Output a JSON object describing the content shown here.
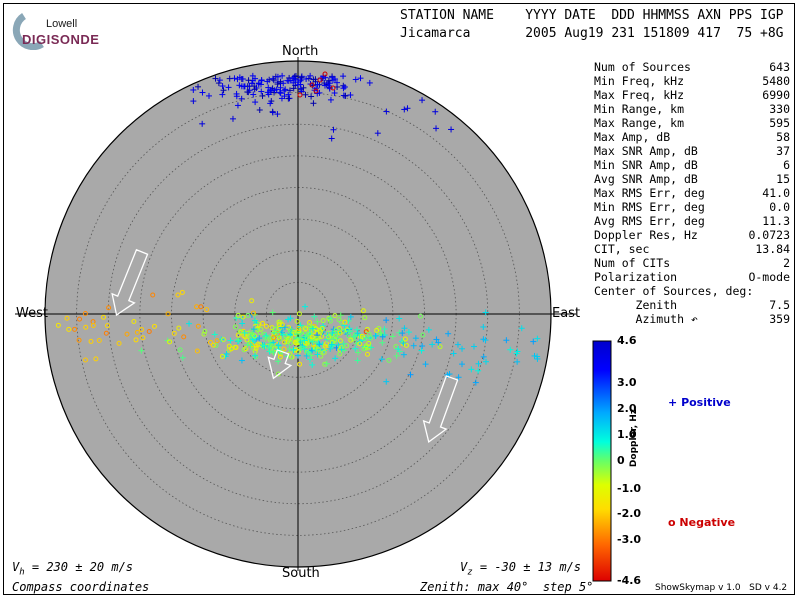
{
  "logo": {
    "line1": "Lowell",
    "line2": "DIGISONDE"
  },
  "header": {
    "labels": "STATION NAME    YYYY DATE  DDD HHMMSS AXN PPS IGP",
    "values": "Jicamarca       2005 Aug19 231 151809 417  75 +8G"
  },
  "compass": {
    "north": "North",
    "south": "South",
    "east": "East",
    "west": "West"
  },
  "stats": [
    {
      "label": "Num of Sources",
      "value": "643"
    },
    {
      "label": "Min Freq, kHz",
      "value": "5480"
    },
    {
      "label": "Max Freq, kHz",
      "value": "6990"
    },
    {
      "label": "Min Range, km",
      "value": "330"
    },
    {
      "label": "Max Range, km",
      "value": "595"
    },
    {
      "label": "Max Amp, dB",
      "value": "58"
    },
    {
      "label": "Max SNR Amp, dB",
      "value": "37"
    },
    {
      "label": "Min SNR Amp, dB",
      "value": "6"
    },
    {
      "label": "Avg SNR Amp, dB",
      "value": "15"
    },
    {
      "label": "Max RMS Err, deg",
      "value": "41.0"
    },
    {
      "label": "Min RMS Err, deg",
      "value": "0.0"
    },
    {
      "label": "Avg RMS Err, deg",
      "value": "11.3"
    },
    {
      "label": "Doppler Res, Hz",
      "value": "0.0723"
    },
    {
      "label": "CIT, sec",
      "value": "13.84"
    },
    {
      "label": "Num of CITs",
      "value": "2"
    },
    {
      "label": "Polarization",
      "value": "O-mode"
    },
    {
      "label": "Center of Sources, deg:",
      "value": ""
    },
    {
      "label": "      Zenith",
      "value": "7.5"
    },
    {
      "label": "      Azimuth ↶",
      "value": "359"
    }
  ],
  "colorbar": {
    "title": "Doppler, Hz",
    "ticks": [
      "4.6",
      "3.0",
      "2.0",
      "1.0",
      "0",
      "-1.0",
      "-2.0",
      "-3.0",
      "-4.6"
    ]
  },
  "legend": {
    "positive": "Positive",
    "negative": "Negative",
    "positive_color": "#0000cc",
    "negative_color": "#cc0000"
  },
  "velocity": {
    "vh_prefix": "V",
    "vh_sub": "h",
    "vh_value": " = 230 ± 20 m/s",
    "vz_prefix": "V",
    "vz_sub": "z",
    "vz_value": " = -30 ± 13 m/s"
  },
  "bottom": {
    "coords": "Compass coordinates",
    "zenith": "Zenith: max 40°  step 5°"
  },
  "footer": "ShowSkymap v 1.0   SD v 4.2",
  "chart_data": {
    "type": "scatter",
    "projection": "polar skymap",
    "zenith_max_deg": 40,
    "zenith_step_deg": 5,
    "doppler_range_hz": [
      -4.6,
      4.6
    ],
    "clusters": [
      {
        "region": "north",
        "zenith_range": [
          24,
          40
        ],
        "azimuth_range": [
          330,
          30
        ],
        "doppler": "positive",
        "count": 160
      },
      {
        "region": "north",
        "zenith_range": [
          36,
          40
        ],
        "azimuth_range": [
          5,
          15
        ],
        "doppler": "negative",
        "count": 6
      },
      {
        "region": "center-south",
        "zenith_range": [
          0,
          25
        ],
        "azimuth_range": [
          90,
          270
        ],
        "doppler": "mixed",
        "count": 477
      }
    ],
    "arrows": [
      {
        "location": "west",
        "direction": "south"
      },
      {
        "location": "center",
        "direction": "south"
      },
      {
        "location": "east",
        "direction": "south-southwest"
      }
    ]
  }
}
